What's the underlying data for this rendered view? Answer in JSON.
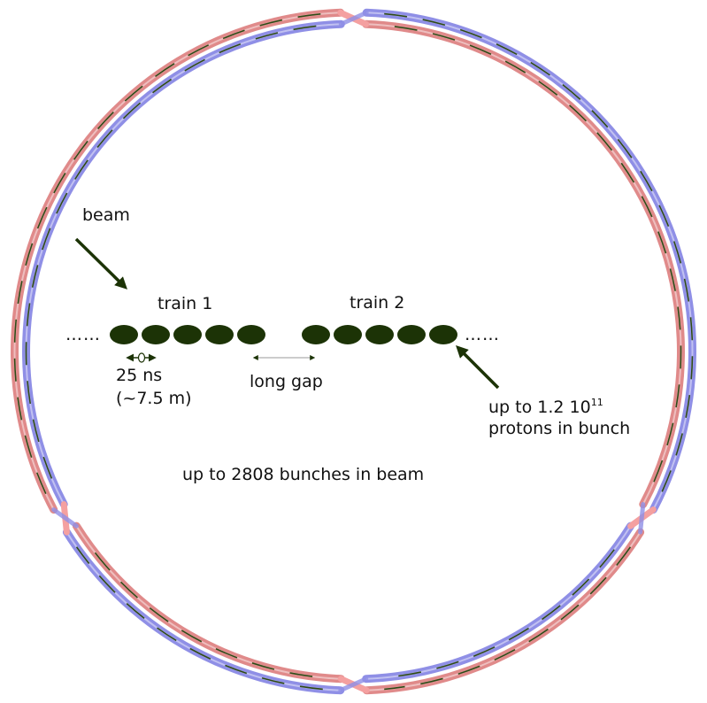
{
  "labels": {
    "beam": "beam",
    "train_1": "train 1",
    "train_2": "train 2",
    "spacing_time": "25 ns",
    "spacing_length": "(~7.5 m)",
    "long_gap": "long gap",
    "protons_line1_prefix": "up to 1.2 10",
    "protons_line1_exponent": "11",
    "protons_line2": "protons in bunch",
    "bunches_in_beam": "up to 2808 bunches in beam",
    "ellipsis_left": "……",
    "ellipsis_right": "……"
  },
  "trains": [
    {
      "bunch_count": 5
    },
    {
      "bunch_count": 5
    }
  ],
  "colors": {
    "bunch": "#1c3306",
    "arrow": "#1c3306",
    "beam_pipe_red": "#e08a8a",
    "beam_pipe_blue": "#8f8fe6",
    "crossing_pink": "#f4a0a0",
    "magnet_segment": "#2e4a16",
    "text": "#111111"
  }
}
